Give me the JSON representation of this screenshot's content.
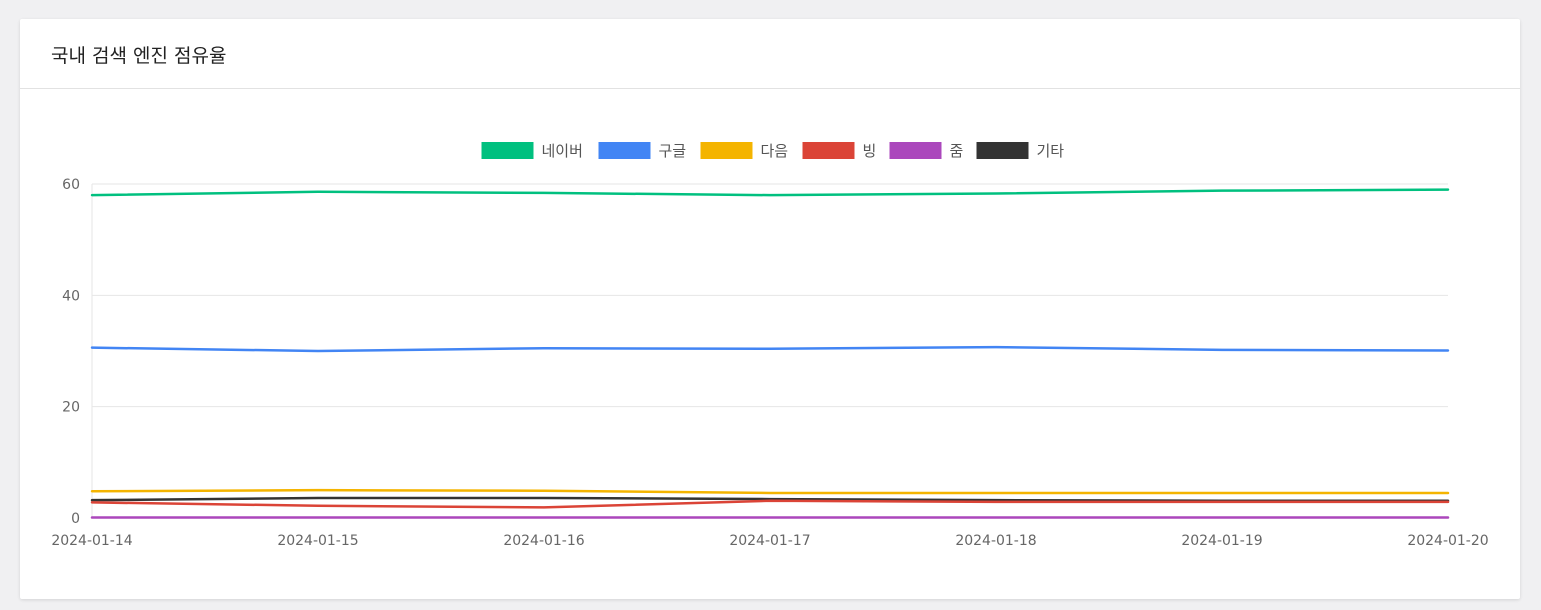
{
  "card": {
    "title": "국내 검색 엔진 점유율"
  },
  "chart_data": {
    "type": "line",
    "title": "",
    "xlabel": "",
    "ylabel": "",
    "categories": [
      "2024-01-14",
      "2024-01-15",
      "2024-01-16",
      "2024-01-17",
      "2024-01-18",
      "2024-01-19",
      "2024-01-20"
    ],
    "ylim": [
      0,
      60
    ],
    "yticks": [
      0,
      20,
      40,
      60
    ],
    "grid": true,
    "legend_position": "top-center",
    "series": [
      {
        "name": "네이버",
        "color": "#00c07f",
        "values": [
          58.0,
          58.6,
          58.4,
          58.0,
          58.3,
          58.8,
          59.0
        ]
      },
      {
        "name": "구글",
        "color": "#4285f4",
        "values": [
          30.6,
          30.0,
          30.5,
          30.4,
          30.7,
          30.2,
          30.1
        ]
      },
      {
        "name": "다음",
        "color": "#f4b400",
        "values": [
          4.8,
          5.0,
          4.9,
          4.5,
          4.5,
          4.5,
          4.5
        ]
      },
      {
        "name": "빙",
        "color": "#db4437",
        "values": [
          2.8,
          2.2,
          1.9,
          3.1,
          2.9,
          2.9,
          2.9
        ]
      },
      {
        "name": "줌",
        "color": "#ab47bc",
        "values": [
          0.1,
          0.1,
          0.1,
          0.1,
          0.1,
          0.1,
          0.1
        ]
      },
      {
        "name": "기타",
        "color": "#333333",
        "values": [
          3.2,
          3.6,
          3.6,
          3.4,
          3.2,
          3.1,
          3.1
        ]
      }
    ]
  }
}
